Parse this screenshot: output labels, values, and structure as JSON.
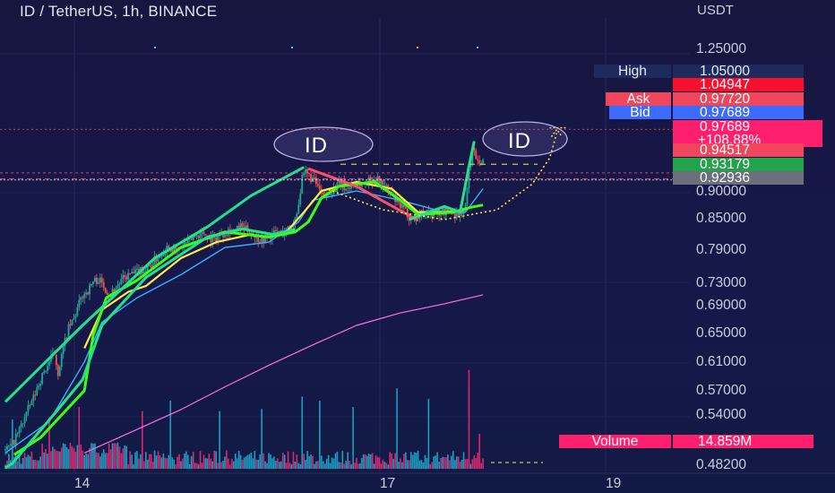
{
  "header": {
    "title": "ID / TetherUS, 1h, BINANCE",
    "currency": "USDT"
  },
  "price_axis": {
    "labels": [
      "1.25000",
      "0.90000",
      "0.85000",
      "0.79000",
      "0.73000",
      "0.69000",
      "0.65000",
      "0.61000",
      "0.57000",
      "0.54000",
      "0.48200"
    ]
  },
  "time_axis": {
    "labels": [
      "14",
      "17",
      "19"
    ]
  },
  "price_tags": {
    "high_label": "High",
    "high_value": "1.05000",
    "red_value": "1.04947",
    "ask_label": "Ask",
    "ask_value": "0.97720",
    "bid_label": "Bid",
    "bid_value": "0.97689",
    "last_value": "0.97689",
    "change_value": "+108.88%",
    "red2_value": "0.94517",
    "green_value": "0.93179",
    "grey_value": "0.92936",
    "volume_label": "Volume",
    "volume_value": "14.859M"
  },
  "annotations": {
    "left_circle": "ID",
    "right_circle": "ID"
  },
  "colors": {
    "background": "#16184a",
    "candle_up": "#26a69a",
    "candle_down": "#ef5350",
    "trend_line": "#22e38a",
    "red_line": "#ff4d6d",
    "fast_ma": "#3ab0ff",
    "slow_ma": "#ff6ee0",
    "yellow_ma": "#ffe94d",
    "bright_green_ma": "#39ff14",
    "ask": "#ef5350",
    "bid": "#3d6bff",
    "last": "#ff1f6d"
  },
  "chart_data": {
    "type": "candlestick",
    "symbol": "ID / TetherUS",
    "interval": "1h",
    "exchange": "BINANCE",
    "y_axis": "log",
    "ylim": [
      0.47,
      1.3
    ],
    "x_ticks": [
      "14",
      "17",
      "19"
    ],
    "price_path": [
      [
        0,
        0.485
      ],
      [
        8,
        0.492
      ],
      [
        14,
        0.505
      ],
      [
        20,
        0.52
      ],
      [
        26,
        0.535
      ],
      [
        32,
        0.55
      ],
      [
        38,
        0.57
      ],
      [
        44,
        0.585
      ],
      [
        50,
        0.6
      ],
      [
        56,
        0.612
      ],
      [
        60,
        0.585
      ],
      [
        66,
        0.62
      ],
      [
        72,
        0.65
      ],
      [
        78,
        0.665
      ],
      [
        84,
        0.69
      ],
      [
        88,
        0.705
      ],
      [
        94,
        0.712
      ],
      [
        100,
        0.728
      ],
      [
        106,
        0.732
      ],
      [
        112,
        0.72
      ],
      [
        118,
        0.708
      ],
      [
        124,
        0.712
      ],
      [
        130,
        0.725
      ],
      [
        136,
        0.735
      ],
      [
        142,
        0.74
      ],
      [
        148,
        0.742
      ],
      [
        154,
        0.75
      ],
      [
        160,
        0.748
      ],
      [
        166,
        0.758
      ],
      [
        172,
        0.77
      ],
      [
        178,
        0.78
      ],
      [
        184,
        0.79
      ],
      [
        190,
        0.79
      ],
      [
        196,
        0.782
      ],
      [
        202,
        0.795
      ],
      [
        208,
        0.8
      ],
      [
        214,
        0.81
      ],
      [
        220,
        0.815
      ],
      [
        226,
        0.818
      ],
      [
        232,
        0.81
      ],
      [
        238,
        0.805
      ],
      [
        244,
        0.815
      ],
      [
        250,
        0.82
      ],
      [
        256,
        0.825
      ],
      [
        262,
        0.822
      ],
      [
        268,
        0.83
      ],
      [
        274,
        0.825
      ],
      [
        280,
        0.82
      ],
      [
        286,
        0.81
      ],
      [
        292,
        0.805
      ],
      [
        298,
        0.81
      ],
      [
        304,
        0.815
      ],
      [
        310,
        0.82
      ],
      [
        316,
        0.818
      ],
      [
        322,
        0.826
      ],
      [
        328,
        0.835
      ],
      [
        334,
        0.88
      ],
      [
        338,
        0.93
      ],
      [
        342,
        0.945
      ],
      [
        346,
        0.938
      ],
      [
        350,
        0.93
      ],
      [
        354,
        0.92
      ],
      [
        358,
        0.905
      ],
      [
        362,
        0.89
      ],
      [
        366,
        0.895
      ],
      [
        370,
        0.905
      ],
      [
        376,
        0.912
      ],
      [
        382,
        0.92
      ],
      [
        388,
        0.91
      ],
      [
        394,
        0.915
      ],
      [
        400,
        0.925
      ],
      [
        406,
        0.918
      ],
      [
        412,
        0.925
      ],
      [
        418,
        0.932
      ],
      [
        424,
        0.928
      ],
      [
        430,
        0.92
      ],
      [
        436,
        0.905
      ],
      [
        442,
        0.89
      ],
      [
        448,
        0.875
      ],
      [
        454,
        0.865
      ],
      [
        460,
        0.852
      ],
      [
        466,
        0.848
      ],
      [
        472,
        0.855
      ],
      [
        478,
        0.862
      ],
      [
        484,
        0.858
      ],
      [
        490,
        0.852
      ],
      [
        496,
        0.86
      ],
      [
        502,
        0.862
      ],
      [
        508,
        0.86
      ],
      [
        514,
        0.855
      ],
      [
        520,
        0.862
      ],
      [
        524,
        0.87
      ],
      [
        528,
        0.95
      ],
      [
        532,
        1.0
      ],
      [
        536,
        0.985
      ],
      [
        540,
        0.975
      ],
      [
        544,
        0.969
      ]
    ],
    "volume_spikes": [
      [
        8,
        0.24
      ],
      [
        50,
        0.25
      ],
      [
        84,
        0.3
      ],
      [
        156,
        0.28
      ],
      [
        188,
        0.33
      ],
      [
        244,
        0.28
      ],
      [
        292,
        0.29
      ],
      [
        338,
        0.35
      ],
      [
        358,
        0.33
      ],
      [
        396,
        0.3
      ],
      [
        446,
        0.39
      ],
      [
        482,
        0.34
      ],
      [
        528,
        0.48
      ],
      [
        540,
        0.17
      ]
    ],
    "moving_averages": [
      {
        "color": "pink",
        "points": [
          [
            90,
            0.482
          ],
          [
            150,
            0.51
          ],
          [
            200,
            0.535
          ],
          [
            250,
            0.565
          ],
          [
            300,
            0.595
          ],
          [
            350,
            0.625
          ],
          [
            400,
            0.655
          ],
          [
            450,
            0.675
          ],
          [
            500,
            0.69
          ],
          [
            544,
            0.705
          ]
        ]
      },
      {
        "color": "blue",
        "points": [
          [
            0,
            0.482
          ],
          [
            50,
            0.52
          ],
          [
            90,
            0.6
          ],
          [
            110,
            0.66
          ],
          [
            150,
            0.7
          ],
          [
            200,
            0.74
          ],
          [
            250,
            0.79
          ],
          [
            300,
            0.8
          ],
          [
            334,
            0.84
          ],
          [
            350,
            0.885
          ],
          [
            400,
            0.905
          ],
          [
            450,
            0.885
          ],
          [
            500,
            0.86
          ],
          [
            524,
            0.86
          ],
          [
            544,
            0.91
          ]
        ]
      },
      {
        "color": "yellow",
        "points": [
          [
            90,
            0.62
          ],
          [
            110,
            0.68
          ],
          [
            140,
            0.71
          ],
          [
            160,
            0.72
          ],
          [
            200,
            0.77
          ],
          [
            240,
            0.8
          ],
          [
            280,
            0.815
          ],
          [
            300,
            0.81
          ],
          [
            320,
            0.82
          ],
          [
            340,
            0.86
          ],
          [
            360,
            0.905
          ],
          [
            400,
            0.925
          ],
          [
            440,
            0.91
          ],
          [
            470,
            0.86
          ],
          [
            500,
            0.86
          ],
          [
            524,
            0.865
          ]
        ]
      },
      {
        "color": "bright-green",
        "points": [
          [
            10,
            0.48
          ],
          [
            40,
            0.5
          ],
          [
            90,
            0.56
          ],
          [
            100,
            0.64
          ],
          [
            115,
            0.7
          ],
          [
            150,
            0.73
          ],
          [
            200,
            0.79
          ],
          [
            250,
            0.82
          ],
          [
            300,
            0.81
          ],
          [
            330,
            0.82
          ],
          [
            345,
            0.84
          ],
          [
            360,
            0.89
          ],
          [
            380,
            0.915
          ],
          [
            420,
            0.925
          ],
          [
            450,
            0.885
          ],
          [
            470,
            0.855
          ],
          [
            510,
            0.86
          ],
          [
            530,
            0.87
          ],
          [
            544,
            0.875
          ]
        ]
      }
    ],
    "drawn_lines": [
      {
        "color": "green",
        "points": [
          [
            0,
            0.545
          ],
          [
            88,
            0.655
          ],
          [
            170,
            0.77
          ],
          [
            230,
            0.83
          ],
          [
            280,
            0.895
          ],
          [
            340,
            0.958
          ]
        ]
      },
      {
        "color": "red",
        "points": [
          [
            345,
            0.955
          ],
          [
            400,
            0.915
          ],
          [
            458,
            0.855
          ],
          [
            470,
            0.843
          ]
        ]
      },
      {
        "color": "green",
        "points": [
          [
            460,
            0.845
          ],
          [
            500,
            0.872
          ],
          [
            518,
            0.86
          ],
          [
            528,
            0.96
          ],
          [
            534,
            1.02
          ]
        ]
      },
      {
        "color": "green",
        "points": [
          [
            0,
            0.465
          ],
          [
            8,
            0.47
          ],
          [
            60,
            0.535
          ],
          [
            88,
            0.575
          ],
          [
            110,
            0.655
          ],
          [
            160,
            0.735
          ],
          [
            230,
            0.81
          ],
          [
            270,
            0.826
          ],
          [
            305,
            0.815
          ],
          [
            330,
            0.825
          ]
        ]
      }
    ],
    "projection": {
      "color": "yellow",
      "style": "dotted",
      "points": [
        [
          368,
          0.908
        ],
        [
          430,
          0.865
        ],
        [
          500,
          0.845
        ],
        [
          560,
          0.865
        ],
        [
          600,
          0.92
        ],
        [
          620,
          0.98
        ],
        [
          628,
          1.04
        ]
      ]
    },
    "price_levels": [
      1.05,
      1.04947,
      0.9772,
      0.97689,
      0.94517,
      0.93179,
      0.92936
    ],
    "last_price": 0.97689,
    "change_percent": 108.88,
    "volume": "14.859M"
  }
}
